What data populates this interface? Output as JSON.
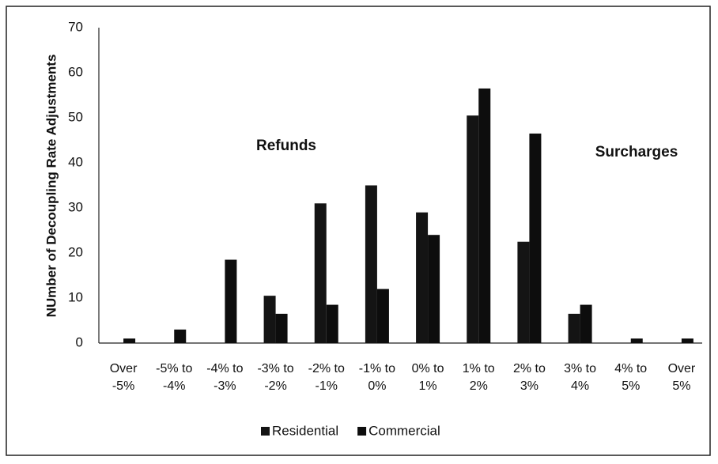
{
  "chart_data": {
    "type": "bar",
    "y_label": "NUmber of Decoupling Rate Adjustments",
    "categories": [
      "Over -5%",
      "-5% to -4%",
      "-4% to -3%",
      "-3% to -2%",
      "-2% to -1%",
      "-1% to 0%",
      "0% to 1%",
      "1% to 2%",
      "2% to 3%",
      "3% to 4%",
      "4% to 5%",
      "Over 5%"
    ],
    "series": [
      {
        "name": "Residential",
        "color": "#141414",
        "values": [
          0,
          0,
          0,
          10.5,
          31,
          35,
          29,
          50.5,
          22.5,
          6.5,
          0,
          0
        ]
      },
      {
        "name": "Commercial",
        "color": "#0d0d0d",
        "values": [
          1,
          3,
          18.5,
          6.5,
          8.5,
          12,
          24,
          56.5,
          46.5,
          8.5,
          1,
          1
        ]
      }
    ],
    "annotations": [
      "Refunds",
      "Surcharges"
    ],
    "ylim": [
      0,
      70
    ],
    "yticks": [
      0,
      10,
      20,
      30,
      40,
      50,
      60,
      70
    ],
    "grid": false,
    "legend": "bottom"
  }
}
